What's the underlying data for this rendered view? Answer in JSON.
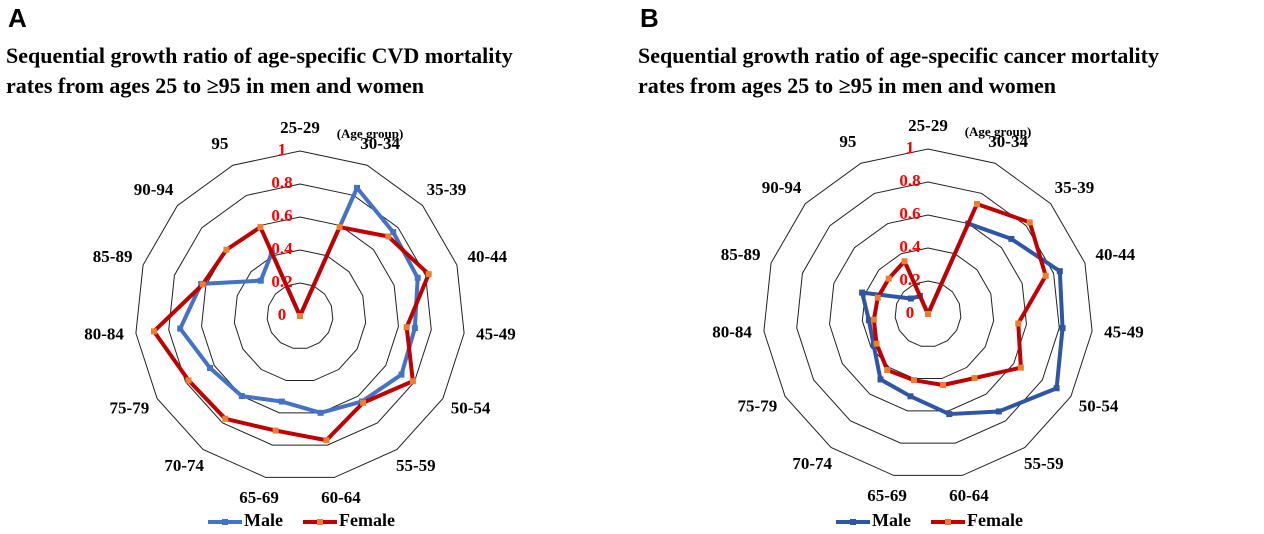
{
  "chart_data": [
    {
      "type": "radar",
      "panel_label": "A",
      "title": [
        "Sequential growth ratio of age-specific  CVD mortality",
        "rates from ages 25 to ≥95 in men and women"
      ],
      "annotation": "(Age group)",
      "categories": [
        "25-29",
        "30-34",
        "35-39",
        "40-44",
        "45-49",
        "50-54",
        "55-59",
        "60-64",
        "65-69",
        "70-74",
        "75-79",
        "80-84",
        "85-89",
        "90-94",
        "95"
      ],
      "ylim": [
        0,
        1
      ],
      "yticks": [
        0,
        0.2,
        0.4,
        0.6,
        0.8,
        1
      ],
      "series": [
        {
          "name": "Male",
          "color": "#4472c4",
          "marker_color": "#4472c4",
          "values": [
            0,
            0.85,
            0.76,
            0.75,
            0.7,
            0.71,
            0.64,
            0.6,
            0.53,
            0.6,
            0.63,
            0.73,
            0.63,
            0.32,
            0.42
          ]
        },
        {
          "name": "Female",
          "color": "#c00000",
          "marker_color": "#ed7d31",
          "values": [
            0,
            0.59,
            0.72,
            0.82,
            0.65,
            0.79,
            0.65,
            0.77,
            0.71,
            0.77,
            0.78,
            0.89,
            0.62,
            0.6,
            0.59
          ]
        }
      ]
    },
    {
      "type": "radar",
      "panel_label": "B",
      "title": [
        "Sequential growth ratio of age-specific cancer mortality",
        " rates from ages 25 to ≥95 in men and women"
      ],
      "annotation": "(Age group)",
      "categories": [
        "25-29",
        "30-34",
        "35-39",
        "40-44",
        "45-49",
        "50-54",
        "55-59",
        "60-64",
        "65-69",
        "70-74",
        "75-79",
        "80-84",
        "85-89",
        "90-94",
        "95"
      ],
      "ylim": [
        0,
        1
      ],
      "yticks": [
        0,
        0.2,
        0.4,
        0.6,
        0.8,
        1
      ],
      "series": [
        {
          "name": "Male",
          "color": "#2f55a4",
          "marker_color": "#2f55a4",
          "values": [
            0,
            0.6,
            0.68,
            0.84,
            0.82,
            0.9,
            0.73,
            0.62,
            0.51,
            0.49,
            0.38,
            0.36,
            0.42,
            0.14,
            0.12
          ]
        },
        {
          "name": "Female",
          "color": "#c00000",
          "marker_color": "#ed7d31",
          "values": [
            0,
            0.73,
            0.83,
            0.75,
            0.55,
            0.65,
            0.48,
            0.44,
            0.41,
            0.42,
            0.36,
            0.33,
            0.32,
            0.32,
            0.35
          ]
        }
      ]
    }
  ]
}
